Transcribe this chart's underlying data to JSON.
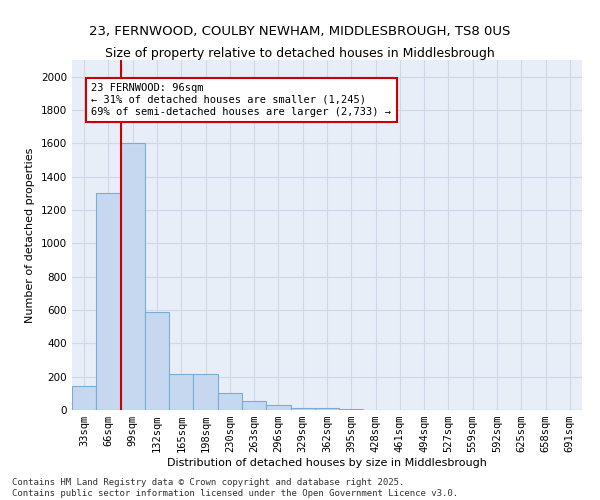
{
  "title_line1": "23, FERNWOOD, COULBY NEWHAM, MIDDLESBROUGH, TS8 0US",
  "title_line2": "Size of property relative to detached houses in Middlesbrough",
  "xlabel": "Distribution of detached houses by size in Middlesbrough",
  "ylabel": "Number of detached properties",
  "categories": [
    "33sqm",
    "66sqm",
    "99sqm",
    "132sqm",
    "165sqm",
    "198sqm",
    "230sqm",
    "263sqm",
    "296sqm",
    "329sqm",
    "362sqm",
    "395sqm",
    "428sqm",
    "461sqm",
    "494sqm",
    "527sqm",
    "559sqm",
    "592sqm",
    "625sqm",
    "658sqm",
    "691sqm"
  ],
  "values": [
    145,
    1300,
    1600,
    590,
    215,
    215,
    100,
    55,
    30,
    15,
    10,
    5,
    0,
    0,
    0,
    0,
    0,
    0,
    0,
    0,
    0
  ],
  "bar_color": "#c5d8f0",
  "bar_edge_color": "#7aadd4",
  "vline_color": "#cc0000",
  "annotation_text": "23 FERNWOOD: 96sqm\n← 31% of detached houses are smaller (1,245)\n69% of semi-detached houses are larger (2,733) →",
  "annotation_box_edgecolor": "#cc0000",
  "ylim": [
    0,
    2100
  ],
  "yticks": [
    0,
    200,
    400,
    600,
    800,
    1000,
    1200,
    1400,
    1600,
    1800,
    2000
  ],
  "grid_color": "#d0d8e8",
  "background_color": "#e8eef8",
  "footer_line1": "Contains HM Land Registry data © Crown copyright and database right 2025.",
  "footer_line2": "Contains public sector information licensed under the Open Government Licence v3.0.",
  "title_fontsize": 9.5,
  "axis_label_fontsize": 8,
  "tick_fontsize": 7.5,
  "footer_fontsize": 6.5
}
